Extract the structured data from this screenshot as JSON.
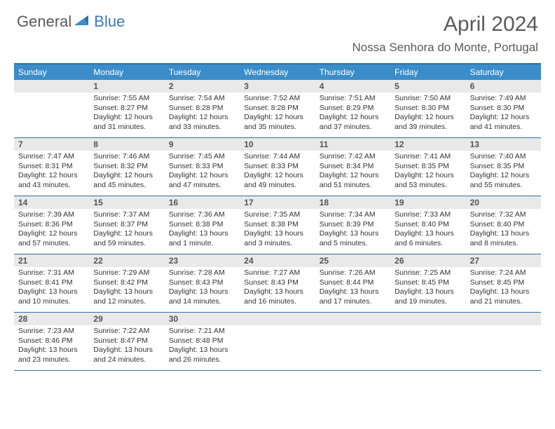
{
  "brand": {
    "part1": "General",
    "part2": "Blue"
  },
  "title": "April 2024",
  "location": "Nossa Senhora do Monte, Portugal",
  "colors": {
    "header_bg": "#3a8dc9",
    "border": "#2d6fa8",
    "daynum_bg": "#e9e9e9",
    "text": "#333333",
    "logo_gray": "#5a5a5a",
    "logo_blue": "#3a7ab8"
  },
  "day_headers": [
    "Sunday",
    "Monday",
    "Tuesday",
    "Wednesday",
    "Thursday",
    "Friday",
    "Saturday"
  ],
  "weeks": [
    [
      {
        "n": "",
        "lines": []
      },
      {
        "n": "1",
        "lines": [
          "Sunrise: 7:55 AM",
          "Sunset: 8:27 PM",
          "Daylight: 12 hours and 31 minutes."
        ]
      },
      {
        "n": "2",
        "lines": [
          "Sunrise: 7:54 AM",
          "Sunset: 8:28 PM",
          "Daylight: 12 hours and 33 minutes."
        ]
      },
      {
        "n": "3",
        "lines": [
          "Sunrise: 7:52 AM",
          "Sunset: 8:28 PM",
          "Daylight: 12 hours and 35 minutes."
        ]
      },
      {
        "n": "4",
        "lines": [
          "Sunrise: 7:51 AM",
          "Sunset: 8:29 PM",
          "Daylight: 12 hours and 37 minutes."
        ]
      },
      {
        "n": "5",
        "lines": [
          "Sunrise: 7:50 AM",
          "Sunset: 8:30 PM",
          "Daylight: 12 hours and 39 minutes."
        ]
      },
      {
        "n": "6",
        "lines": [
          "Sunrise: 7:49 AM",
          "Sunset: 8:30 PM",
          "Daylight: 12 hours and 41 minutes."
        ]
      }
    ],
    [
      {
        "n": "7",
        "lines": [
          "Sunrise: 7:47 AM",
          "Sunset: 8:31 PM",
          "Daylight: 12 hours and 43 minutes."
        ]
      },
      {
        "n": "8",
        "lines": [
          "Sunrise: 7:46 AM",
          "Sunset: 8:32 PM",
          "Daylight: 12 hours and 45 minutes."
        ]
      },
      {
        "n": "9",
        "lines": [
          "Sunrise: 7:45 AM",
          "Sunset: 8:33 PM",
          "Daylight: 12 hours and 47 minutes."
        ]
      },
      {
        "n": "10",
        "lines": [
          "Sunrise: 7:44 AM",
          "Sunset: 8:33 PM",
          "Daylight: 12 hours and 49 minutes."
        ]
      },
      {
        "n": "11",
        "lines": [
          "Sunrise: 7:42 AM",
          "Sunset: 8:34 PM",
          "Daylight: 12 hours and 51 minutes."
        ]
      },
      {
        "n": "12",
        "lines": [
          "Sunrise: 7:41 AM",
          "Sunset: 8:35 PM",
          "Daylight: 12 hours and 53 minutes."
        ]
      },
      {
        "n": "13",
        "lines": [
          "Sunrise: 7:40 AM",
          "Sunset: 8:35 PM",
          "Daylight: 12 hours and 55 minutes."
        ]
      }
    ],
    [
      {
        "n": "14",
        "lines": [
          "Sunrise: 7:39 AM",
          "Sunset: 8:36 PM",
          "Daylight: 12 hours and 57 minutes."
        ]
      },
      {
        "n": "15",
        "lines": [
          "Sunrise: 7:37 AM",
          "Sunset: 8:37 PM",
          "Daylight: 12 hours and 59 minutes."
        ]
      },
      {
        "n": "16",
        "lines": [
          "Sunrise: 7:36 AM",
          "Sunset: 8:38 PM",
          "Daylight: 13 hours and 1 minute."
        ]
      },
      {
        "n": "17",
        "lines": [
          "Sunrise: 7:35 AM",
          "Sunset: 8:38 PM",
          "Daylight: 13 hours and 3 minutes."
        ]
      },
      {
        "n": "18",
        "lines": [
          "Sunrise: 7:34 AM",
          "Sunset: 8:39 PM",
          "Daylight: 13 hours and 5 minutes."
        ]
      },
      {
        "n": "19",
        "lines": [
          "Sunrise: 7:33 AM",
          "Sunset: 8:40 PM",
          "Daylight: 13 hours and 6 minutes."
        ]
      },
      {
        "n": "20",
        "lines": [
          "Sunrise: 7:32 AM",
          "Sunset: 8:40 PM",
          "Daylight: 13 hours and 8 minutes."
        ]
      }
    ],
    [
      {
        "n": "21",
        "lines": [
          "Sunrise: 7:31 AM",
          "Sunset: 8:41 PM",
          "Daylight: 13 hours and 10 minutes."
        ]
      },
      {
        "n": "22",
        "lines": [
          "Sunrise: 7:29 AM",
          "Sunset: 8:42 PM",
          "Daylight: 13 hours and 12 minutes."
        ]
      },
      {
        "n": "23",
        "lines": [
          "Sunrise: 7:28 AM",
          "Sunset: 8:43 PM",
          "Daylight: 13 hours and 14 minutes."
        ]
      },
      {
        "n": "24",
        "lines": [
          "Sunrise: 7:27 AM",
          "Sunset: 8:43 PM",
          "Daylight: 13 hours and 16 minutes."
        ]
      },
      {
        "n": "25",
        "lines": [
          "Sunrise: 7:26 AM",
          "Sunset: 8:44 PM",
          "Daylight: 13 hours and 17 minutes."
        ]
      },
      {
        "n": "26",
        "lines": [
          "Sunrise: 7:25 AM",
          "Sunset: 8:45 PM",
          "Daylight: 13 hours and 19 minutes."
        ]
      },
      {
        "n": "27",
        "lines": [
          "Sunrise: 7:24 AM",
          "Sunset: 8:45 PM",
          "Daylight: 13 hours and 21 minutes."
        ]
      }
    ],
    [
      {
        "n": "28",
        "lines": [
          "Sunrise: 7:23 AM",
          "Sunset: 8:46 PM",
          "Daylight: 13 hours and 23 minutes."
        ]
      },
      {
        "n": "29",
        "lines": [
          "Sunrise: 7:22 AM",
          "Sunset: 8:47 PM",
          "Daylight: 13 hours and 24 minutes."
        ]
      },
      {
        "n": "30",
        "lines": [
          "Sunrise: 7:21 AM",
          "Sunset: 8:48 PM",
          "Daylight: 13 hours and 26 minutes."
        ]
      },
      {
        "n": "",
        "lines": []
      },
      {
        "n": "",
        "lines": []
      },
      {
        "n": "",
        "lines": []
      },
      {
        "n": "",
        "lines": []
      }
    ]
  ]
}
